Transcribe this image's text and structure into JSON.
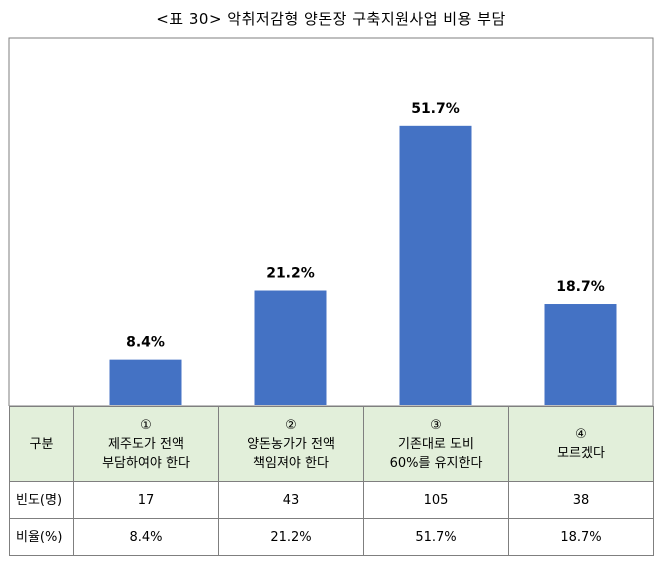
{
  "title": "<표 30> 악취저감형 양돈장 구축지원사업 비용 부담",
  "chart_data": {
    "type": "bar",
    "categories": [
      "①",
      "②",
      "③",
      "④"
    ],
    "values": [
      8.4,
      21.2,
      51.7,
      18.7
    ],
    "value_labels": [
      "8.4%",
      "21.2%",
      "51.7%",
      "18.7%"
    ],
    "ylim": [
      0,
      60
    ],
    "bar_color": "#4472c4",
    "grid": false,
    "legend": "none"
  },
  "table": {
    "header": "구분",
    "options": [
      {
        "num": "①",
        "line1": "제주도가 전액",
        "line2": "부담하여야 한다"
      },
      {
        "num": "②",
        "line1": "양돈농가가 전액",
        "line2": "책임져야 한다"
      },
      {
        "num": "③",
        "line1": "기존대로 도비",
        "line2": "60%를 유지한다"
      },
      {
        "num": "④",
        "line1": "모르겠다",
        "line2": ""
      }
    ],
    "rows": [
      {
        "label": "빈도(명)",
        "values": [
          "17",
          "43",
          "105",
          "38"
        ]
      },
      {
        "label": "비율(%)",
        "values": [
          "8.4%",
          "21.2%",
          "51.7%",
          "18.7%"
        ]
      }
    ],
    "header_bg": "#e2efda"
  }
}
